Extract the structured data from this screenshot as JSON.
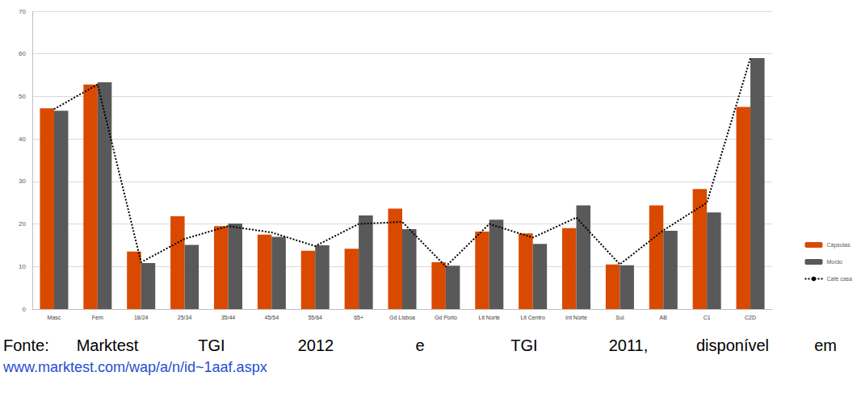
{
  "chart_data": {
    "type": "bar",
    "categories": [
      "Masc",
      "Fem",
      "18/24",
      "25/34",
      "35/44",
      "45/54",
      "55/64",
      "65+",
      "Gd Lisboa",
      "Gd Porto",
      "Lit Norte",
      "Lit Centro",
      "Int Norte",
      "Sul",
      "AB",
      "C1",
      "C2D"
    ],
    "series": [
      {
        "name": "Cápsulas",
        "type": "bar",
        "color": "#d94a00",
        "values": [
          47.2,
          52.8,
          13.5,
          21.8,
          19.5,
          17.5,
          13.7,
          14.2,
          23.6,
          11,
          18.2,
          17.8,
          19,
          10.5,
          24.4,
          28.2,
          47.5
        ]
      },
      {
        "name": "Moído",
        "type": "bar",
        "color": "#595959",
        "values": [
          46.6,
          53.3,
          10.8,
          15.1,
          20.1,
          17,
          15,
          22,
          18.8,
          10.2,
          21,
          15.3,
          24.4,
          10.3,
          18.4,
          22.7,
          59
        ]
      },
      {
        "name": "Café casa",
        "type": "line",
        "color": "#000000",
        "line_style": "dotted",
        "marker": "none",
        "values": [
          47,
          52.8,
          11,
          16.5,
          19.5,
          18,
          14.8,
          20,
          20.5,
          10,
          20,
          16.8,
          21.5,
          10.5,
          18.5,
          25,
          59
        ]
      }
    ],
    "ylim": [
      0,
      70
    ],
    "yticks": [
      0,
      10,
      20,
      30,
      40,
      50,
      60,
      70
    ],
    "grid": true,
    "legend": "right",
    "annotations": [
      "Fonte: Marktest TGI 2012 e TGI 2011, disponível em",
      "www.marktest.com/wap/a/n/id~1aaf.aspx"
    ]
  }
}
